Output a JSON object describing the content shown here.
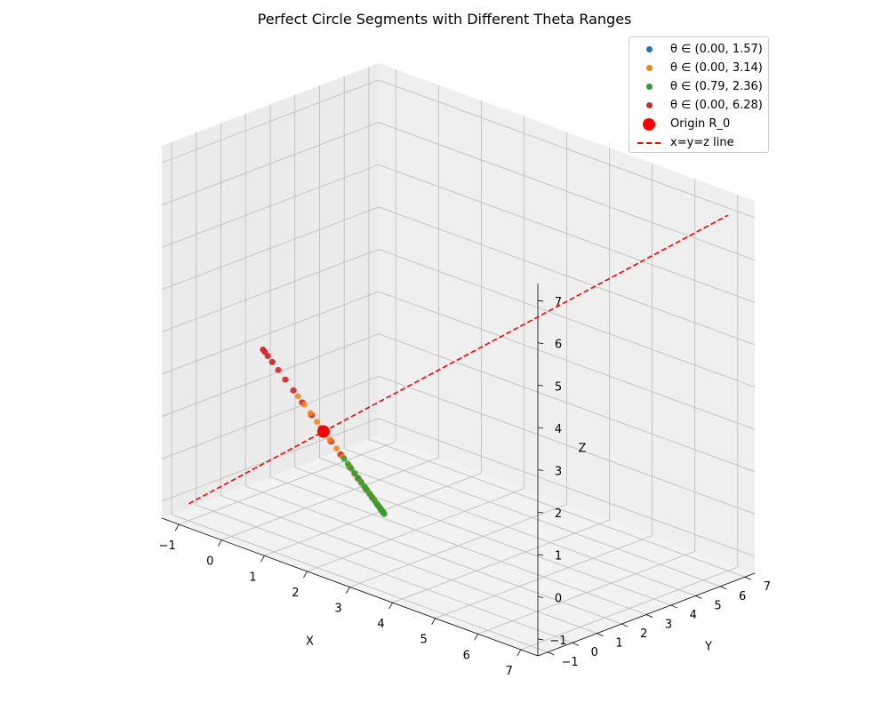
{
  "chart_data": {
    "type": "scatter3d",
    "title": "Perfect Circle Segments with Different Theta Ranges",
    "xlabel": "X",
    "ylabel": "Y",
    "zlabel": "Z",
    "xticks": [
      "−1",
      "0",
      "1",
      "2",
      "3",
      "4",
      "5",
      "6",
      "7"
    ],
    "yticks": [
      "−1",
      "0",
      "1",
      "2",
      "3",
      "4",
      "5",
      "6",
      "7"
    ],
    "zticks": [
      "−1",
      "0",
      "1",
      "2",
      "3",
      "4",
      "5",
      "6",
      "7"
    ],
    "xlim": [
      -1.4,
      7.4
    ],
    "ylim": [
      -1.4,
      7.4
    ],
    "zlim": [
      -1.4,
      7.4
    ],
    "origin": {
      "name": "Origin R_0",
      "point": [
        1,
        1,
        1
      ],
      "color": "#ff0000"
    },
    "reference_line": {
      "name": "x=y=z line",
      "from": [
        -1,
        -1,
        -1
      ],
      "to": [
        7,
        7,
        7
      ],
      "color": "#ff0000",
      "style": "dashed"
    },
    "circle": {
      "center": [
        1,
        1,
        1
      ],
      "radius": 2
    },
    "series": [
      {
        "name": "θ ∈ (0.00, 1.57)",
        "color": "#1f77b4",
        "theta_range": [
          0.0,
          1.57
        ],
        "count": 20
      },
      {
        "name": "θ ∈ (0.00, 3.14)",
        "color": "#ff7f0e",
        "theta_range": [
          0.0,
          3.14
        ],
        "count": 30
      },
      {
        "name": "θ ∈ (0.79, 2.36)",
        "color": "#2ca02c",
        "theta_range": [
          0.79,
          2.36
        ],
        "count": 25
      },
      {
        "name": "θ ∈ (0.00, 6.28)",
        "color": "#d62728",
        "theta_range": [
          0.0,
          6.28
        ],
        "count": 40
      }
    ],
    "grid": true,
    "legend": "top-right"
  }
}
